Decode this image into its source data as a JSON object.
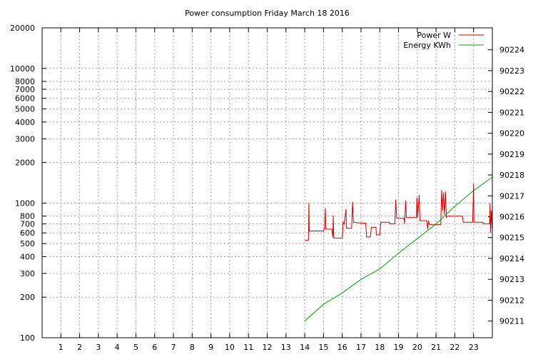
{
  "chart_data": {
    "type": "line",
    "title": "Power consumption Friday March 18 2016",
    "xlabel": "",
    "ylabel": "",
    "xlim": [
      0,
      24
    ],
    "x_ticks": [
      "1",
      "2",
      "3",
      "4",
      "5",
      "6",
      "7",
      "8",
      "9",
      "10",
      "11",
      "12",
      "13",
      "14",
      "15",
      "16",
      "17",
      "18",
      "19",
      "20",
      "21",
      "22",
      "23"
    ],
    "y_scale": "log",
    "ylim": [
      100,
      20000
    ],
    "y_ticks": [
      "100",
      "200",
      "300",
      "400",
      "500",
      "600",
      "700",
      "800",
      "1000",
      "2000",
      "3000",
      "4000",
      "5000",
      "6000",
      "7000",
      "8000",
      "10000",
      "20000"
    ],
    "y2_scale": "linear",
    "y2lim": [
      90210.2,
      90225.05
    ],
    "y2_ticks": [
      "90211",
      "90212",
      "90213",
      "90214",
      "90215",
      "90216",
      "90217",
      "90218",
      "90219",
      "90220",
      "90221",
      "90222",
      "90223",
      "90224"
    ],
    "grid": true,
    "legend_position": "top-right",
    "series": [
      {
        "name": "Power W",
        "axis": "y",
        "color": "#cc0000",
        "points": [
          [
            14.0,
            530
          ],
          [
            14.2,
            530
          ],
          [
            14.22,
            1000
          ],
          [
            14.24,
            620
          ],
          [
            15.0,
            620
          ],
          [
            15.05,
            640
          ],
          [
            15.1,
            920
          ],
          [
            15.12,
            640
          ],
          [
            15.45,
            640
          ],
          [
            15.5,
            560
          ],
          [
            15.52,
            810
          ],
          [
            15.55,
            550
          ],
          [
            16.0,
            550
          ],
          [
            16.05,
            720
          ],
          [
            16.1,
            700
          ],
          [
            16.2,
            900
          ],
          [
            16.22,
            650
          ],
          [
            16.5,
            650
          ],
          [
            16.55,
            1020
          ],
          [
            16.6,
            720
          ],
          [
            17.0,
            710
          ],
          [
            17.25,
            710
          ],
          [
            17.3,
            560
          ],
          [
            17.5,
            560
          ],
          [
            17.55,
            660
          ],
          [
            17.8,
            660
          ],
          [
            17.82,
            580
          ],
          [
            18.0,
            580
          ],
          [
            18.05,
            720
          ],
          [
            18.5,
            720
          ],
          [
            18.55,
            700
          ],
          [
            18.8,
            700
          ],
          [
            18.85,
            1060
          ],
          [
            18.9,
            770
          ],
          [
            19.3,
            770
          ],
          [
            19.32,
            700
          ],
          [
            19.38,
            1040
          ],
          [
            19.42,
            780
          ],
          [
            19.95,
            780
          ],
          [
            19.98,
            1100
          ],
          [
            20.02,
            780
          ],
          [
            20.1,
            1150
          ],
          [
            20.14,
            740
          ],
          [
            20.5,
            740
          ],
          [
            20.55,
            640
          ],
          [
            20.6,
            740
          ],
          [
            20.65,
            690
          ],
          [
            21.25,
            690
          ],
          [
            21.3,
            1250
          ],
          [
            21.35,
            880
          ],
          [
            21.4,
            1200
          ],
          [
            21.45,
            820
          ],
          [
            21.5,
            1220
          ],
          [
            21.55,
            780
          ],
          [
            21.6,
            800
          ],
          [
            22.4,
            800
          ],
          [
            22.45,
            720
          ],
          [
            22.95,
            720
          ],
          [
            23.0,
            1400
          ],
          [
            23.02,
            720
          ],
          [
            23.5,
            720
          ],
          [
            23.55,
            700
          ],
          [
            23.85,
            700
          ],
          [
            23.88,
            1000
          ],
          [
            23.9,
            600
          ],
          [
            23.95,
            880
          ],
          [
            24.0,
            600
          ]
        ]
      },
      {
        "name": "Energy KWh",
        "axis": "y2",
        "color": "#00a000",
        "points": [
          [
            14.0,
            90211.0
          ],
          [
            15.0,
            90211.8
          ],
          [
            16.0,
            90212.35
          ],
          [
            17.0,
            90213.0
          ],
          [
            18.0,
            90213.5
          ],
          [
            19.0,
            90214.25
          ],
          [
            20.0,
            90214.95
          ],
          [
            21.0,
            90215.65
          ],
          [
            22.0,
            90216.5
          ],
          [
            23.0,
            90217.25
          ],
          [
            24.0,
            90217.9
          ]
        ]
      }
    ]
  }
}
